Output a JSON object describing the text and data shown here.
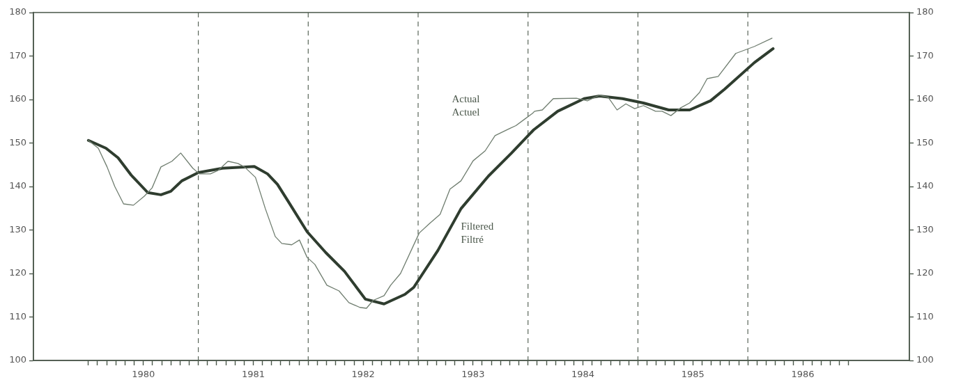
{
  "chart_data": {
    "type": "line",
    "xlim": [
      1979.5,
      1987.47
    ],
    "xticks": [
      {
        "value": 1980,
        "label": null
      },
      {
        "value": 1980.083,
        "label": null
      },
      {
        "value": 1980.167,
        "label": null
      },
      {
        "value": 1980.25,
        "label": null
      },
      {
        "value": 1980.333,
        "label": null
      },
      {
        "value": 1980.417,
        "label": null
      },
      {
        "value": 1980.5,
        "label": "1980"
      },
      {
        "value": 1980.583,
        "label": null
      },
      {
        "value": 1980.667,
        "label": null
      },
      {
        "value": 1980.75,
        "label": null
      },
      {
        "value": 1980.833,
        "label": null
      },
      {
        "value": 1980.917,
        "label": null
      },
      {
        "value": 1981,
        "label": null
      },
      {
        "value": 1981.083,
        "label": null
      },
      {
        "value": 1981.167,
        "label": null
      },
      {
        "value": 1981.25,
        "label": null
      },
      {
        "value": 1981.333,
        "label": null
      },
      {
        "value": 1981.417,
        "label": null
      },
      {
        "value": 1981.5,
        "label": "1981"
      },
      {
        "value": 1981.583,
        "label": null
      },
      {
        "value": 1981.667,
        "label": null
      },
      {
        "value": 1981.75,
        "label": null
      },
      {
        "value": 1981.833,
        "label": null
      },
      {
        "value": 1981.917,
        "label": null
      },
      {
        "value": 1982,
        "label": null
      },
      {
        "value": 1982.083,
        "label": null
      },
      {
        "value": 1982.167,
        "label": null
      },
      {
        "value": 1982.25,
        "label": null
      },
      {
        "value": 1982.333,
        "label": null
      },
      {
        "value": 1982.417,
        "label": null
      },
      {
        "value": 1982.5,
        "label": "1982"
      },
      {
        "value": 1982.583,
        "label": null
      },
      {
        "value": 1982.667,
        "label": null
      },
      {
        "value": 1982.75,
        "label": null
      },
      {
        "value": 1982.833,
        "label": null
      },
      {
        "value": 1982.917,
        "label": null
      },
      {
        "value": 1983,
        "label": null
      },
      {
        "value": 1983.083,
        "label": null
      },
      {
        "value": 1983.167,
        "label": null
      },
      {
        "value": 1983.25,
        "label": null
      },
      {
        "value": 1983.333,
        "label": null
      },
      {
        "value": 1983.417,
        "label": null
      },
      {
        "value": 1983.5,
        "label": "1983"
      },
      {
        "value": 1983.583,
        "label": null
      },
      {
        "value": 1983.667,
        "label": null
      },
      {
        "value": 1983.75,
        "label": null
      },
      {
        "value": 1983.833,
        "label": null
      },
      {
        "value": 1983.917,
        "label": null
      },
      {
        "value": 1984,
        "label": null
      },
      {
        "value": 1984.083,
        "label": null
      },
      {
        "value": 1984.167,
        "label": null
      },
      {
        "value": 1984.25,
        "label": null
      },
      {
        "value": 1984.333,
        "label": null
      },
      {
        "value": 1984.417,
        "label": null
      },
      {
        "value": 1984.5,
        "label": "1984"
      },
      {
        "value": 1984.583,
        "label": null
      },
      {
        "value": 1984.667,
        "label": null
      },
      {
        "value": 1984.75,
        "label": null
      },
      {
        "value": 1984.833,
        "label": null
      },
      {
        "value": 1984.917,
        "label": null
      },
      {
        "value": 1985,
        "label": null
      },
      {
        "value": 1985.083,
        "label": null
      },
      {
        "value": 1985.167,
        "label": null
      },
      {
        "value": 1985.25,
        "label": null
      },
      {
        "value": 1985.333,
        "label": null
      },
      {
        "value": 1985.417,
        "label": null
      },
      {
        "value": 1985.5,
        "label": "1985"
      },
      {
        "value": 1985.583,
        "label": null
      },
      {
        "value": 1985.667,
        "label": null
      },
      {
        "value": 1985.75,
        "label": null
      },
      {
        "value": 1985.833,
        "label": null
      },
      {
        "value": 1985.917,
        "label": null
      },
      {
        "value": 1986,
        "label": null
      },
      {
        "value": 1986.083,
        "label": null
      },
      {
        "value": 1986.167,
        "label": null
      },
      {
        "value": 1986.25,
        "label": null
      },
      {
        "value": 1986.333,
        "label": null
      },
      {
        "value": 1986.417,
        "label": null
      },
      {
        "value": 1986.5,
        "label": "1986"
      },
      {
        "value": 1986.583,
        "label": null
      },
      {
        "value": 1986.667,
        "label": null
      },
      {
        "value": 1986.75,
        "label": null
      },
      {
        "value": 1986.833,
        "label": null
      },
      {
        "value": 1986.917,
        "label": null
      }
    ],
    "ylim": [
      100,
      180
    ],
    "yticks": [
      100,
      110,
      120,
      130,
      140,
      150,
      160,
      170,
      180
    ],
    "y2lim": [
      100,
      180
    ],
    "y2ticks": [
      100,
      110,
      120,
      130,
      140,
      150,
      160,
      170,
      180
    ],
    "grid": false,
    "legend": false,
    "marker": "none",
    "ref_lines": [
      {
        "axis": "x",
        "value": 1981,
        "color": "#5a665a",
        "line_style": "dashed"
      },
      {
        "axis": "x",
        "value": 1982,
        "color": "#5a665a",
        "line_style": "dashed"
      },
      {
        "axis": "x",
        "value": 1983,
        "color": "#5a665a",
        "line_style": "dashed"
      },
      {
        "axis": "x",
        "value": 1984,
        "color": "#5a665a",
        "line_style": "dashed"
      },
      {
        "axis": "x",
        "value": 1985,
        "color": "#5a665a",
        "line_style": "dashed"
      },
      {
        "axis": "x",
        "value": 1986,
        "color": "#5a665a",
        "line_style": "dashed"
      }
    ],
    "series": [
      {
        "name": "Actual\nActuel",
        "color": "#6f7d6f",
        "x": [
          1980.0,
          1980.09,
          1980.17,
          1980.24,
          1980.32,
          1980.41,
          1980.51,
          1980.58,
          1980.66,
          1980.76,
          1980.84,
          1980.95,
          1981.01,
          1981.11,
          1981.18,
          1981.27,
          1981.36,
          1981.42,
          1981.52,
          1981.61,
          1981.7,
          1981.76,
          1981.85,
          1981.92,
          1981.99,
          1982.06,
          1982.17,
          1982.28,
          1982.37,
          1982.47,
          1982.53,
          1982.59,
          1982.69,
          1982.75,
          1982.84,
          1983.01,
          1983.1,
          1983.2,
          1983.29,
          1983.39,
          1983.5,
          1983.61,
          1983.7,
          1983.83,
          1983.89,
          1983.97,
          1984.04,
          1984.06,
          1984.13,
          1984.23,
          1984.44,
          1984.54,
          1984.65,
          1984.73,
          1984.81,
          1984.89,
          1984.97,
          1985.05,
          1985.16,
          1985.22,
          1985.3,
          1985.39,
          1985.47,
          1985.56,
          1985.63,
          1985.73,
          1985.89,
          1986.06,
          1986.22
        ],
        "values": [
          150.6,
          148.8,
          144.5,
          140,
          136,
          135.7,
          137.8,
          139.7,
          144.5,
          145.8,
          147.7,
          144.2,
          142.9,
          142.9,
          143.7,
          145.8,
          145.3,
          144.5,
          142.1,
          134.9,
          128.5,
          126.9,
          126.6,
          127.7,
          123.7,
          122.1,
          117.3,
          116,
          113.3,
          112.2,
          112,
          113.8,
          114.9,
          117.3,
          120,
          129.3,
          131.4,
          133.6,
          139.4,
          141.3,
          145.9,
          148.2,
          151.7,
          153.3,
          154,
          155.5,
          156.8,
          157.3,
          157.6,
          160.2,
          160.3,
          159.7,
          161,
          160.5,
          157.6,
          159,
          157.9,
          158.6,
          157.3,
          157.3,
          156.3,
          158.1,
          159.2,
          161.6,
          164.8,
          165.3,
          170.6,
          172.2,
          174.1
        ]
      },
      {
        "name": "Filtered\nFiltré",
        "color": "#2f3d2f",
        "x": [
          1980.0,
          1980.16,
          1980.27,
          1980.39,
          1980.54,
          1980.66,
          1980.75,
          1980.85,
          1981.0,
          1981.22,
          1981.51,
          1981.63,
          1981.72,
          1981.82,
          1981.99,
          1982.16,
          1982.33,
          1982.52,
          1982.69,
          1982.88,
          1982.96,
          1983.18,
          1983.39,
          1983.64,
          1983.85,
          1984.05,
          1984.27,
          1984.51,
          1984.65,
          1984.86,
          1985.05,
          1985.28,
          1985.47,
          1985.66,
          1985.79,
          1986.06,
          1986.23
        ],
        "values": [
          150.6,
          148.8,
          146.6,
          142.6,
          138.6,
          138.1,
          138.9,
          141.3,
          143.2,
          144.2,
          144.6,
          142.9,
          140.5,
          136.5,
          129.6,
          124.8,
          120.5,
          114.1,
          113,
          115.2,
          116.8,
          125.3,
          134.9,
          142.4,
          147.7,
          153,
          157.3,
          160.2,
          160.8,
          160.2,
          159.2,
          157.6,
          157.6,
          159.7,
          162.4,
          168.5,
          171.7
        ]
      }
    ]
  }
}
